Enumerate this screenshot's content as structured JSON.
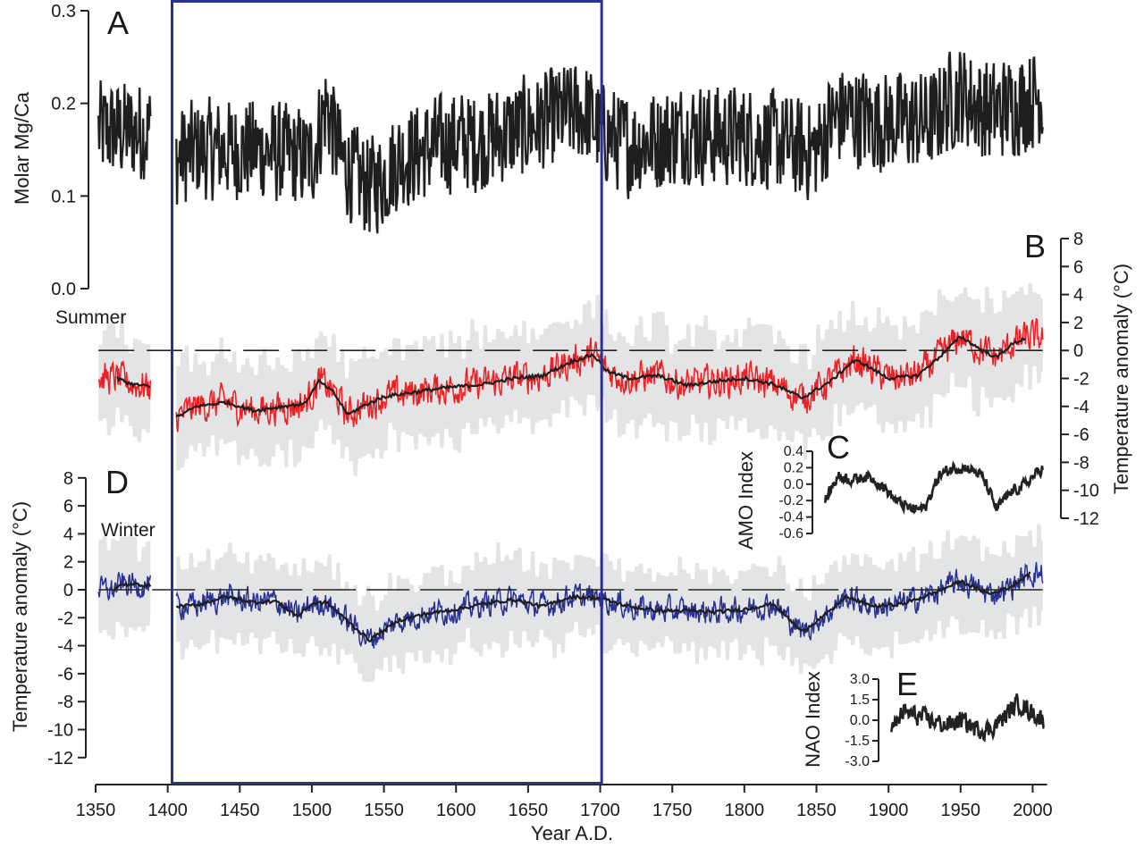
{
  "chart_data": {
    "type": "line",
    "colors": {
      "mgca": "#1e1e1e",
      "summer": "#ee2024",
      "winter": "#2b3192",
      "mean": "#1e1e1e",
      "band": "#e3e4e6",
      "highlight_box": "#2b3192",
      "amo": "#222222",
      "nao": "#222222"
    },
    "x_axis": {
      "label": "Year A.D.",
      "range": [
        1350,
        2010
      ],
      "ticks": [
        "1350",
        "1400",
        "1450",
        "1500",
        "1550",
        "1600",
        "1650",
        "1700",
        "1750",
        "1800",
        "1850",
        "1900",
        "1950",
        "2000"
      ]
    },
    "highlight_box_years": [
      1403,
      1701
    ],
    "panels": [
      {
        "id": "A",
        "letter": "A",
        "ylabel": "Molar Mg/Ca",
        "ylim": [
          0,
          0.3
        ],
        "yticks": [
          "0.0",
          "0.1",
          "0.2",
          "0.3"
        ],
        "noise_amplitude": 0.05,
        "segments": [
          [
            1352,
            1388
          ],
          [
            1406,
            2007
          ]
        ],
        "series_mean": {
          "x": [
            1350,
            1360,
            1370,
            1380,
            1390,
            1406,
            1420,
            1440,
            1460,
            1480,
            1500,
            1510,
            1520,
            1530,
            1540,
            1550,
            1560,
            1580,
            1600,
            1620,
            1640,
            1660,
            1680,
            1690,
            1700,
            1720,
            1740,
            1760,
            1780,
            1800,
            1820,
            1840,
            1850,
            1860,
            1870,
            1890,
            1910,
            1930,
            1940,
            1950,
            1970,
            1990,
            2007
          ],
          "y": [
            0.17,
            0.17,
            0.17,
            0.17,
            0.17,
            0.14,
            0.15,
            0.15,
            0.15,
            0.145,
            0.14,
            0.2,
            0.14,
            0.12,
            0.11,
            0.12,
            0.14,
            0.15,
            0.16,
            0.16,
            0.17,
            0.18,
            0.19,
            0.19,
            0.17,
            0.155,
            0.16,
            0.17,
            0.165,
            0.165,
            0.16,
            0.15,
            0.15,
            0.18,
            0.19,
            0.18,
            0.18,
            0.18,
            0.2,
            0.21,
            0.19,
            0.2,
            0.21
          ]
        }
      },
      {
        "id": "B",
        "letter": "B",
        "season": "Summer",
        "ylabel": "Temperature anomaly (°C)",
        "ylim": [
          -12,
          8
        ],
        "yticks": [
          "8",
          "6",
          "4",
          "2",
          "0",
          "-2",
          "-4",
          "-6",
          "-8",
          "-10",
          "-12"
        ],
        "noise_amplitude": 1.8,
        "segments": [
          [
            1352,
            1388
          ],
          [
            1406,
            2007
          ]
        ],
        "running_mean": {
          "x": [
            1365,
            1375,
            1388,
            1406,
            1420,
            1440,
            1460,
            1480,
            1495,
            1505,
            1515,
            1525,
            1535,
            1550,
            1570,
            1590,
            1620,
            1640,
            1660,
            1680,
            1695,
            1705,
            1720,
            1740,
            1760,
            1780,
            1800,
            1820,
            1840,
            1860,
            1875,
            1880,
            1900,
            1920,
            1935,
            1950,
            1965,
            1975,
            1985,
            1995
          ],
          "y": [
            -2.0,
            -2.4,
            -2.6,
            -4.8,
            -4.0,
            -3.7,
            -4.3,
            -4.0,
            -3.8,
            -2.2,
            -3.0,
            -4.6,
            -4.0,
            -3.3,
            -3.0,
            -2.7,
            -2.4,
            -2.0,
            -1.8,
            -0.8,
            -0.3,
            -1.5,
            -2.0,
            -1.8,
            -2.5,
            -2.2,
            -2.0,
            -2.4,
            -3.4,
            -2.2,
            -0.8,
            -0.8,
            -2.0,
            -1.8,
            -0.5,
            1.0,
            0.0,
            -0.5,
            0.4,
            0.9
          ]
        }
      },
      {
        "id": "C",
        "letter": "C",
        "ylabel": "AMO Index",
        "ylim": [
          -0.6,
          0.4
        ],
        "yticks": [
          "0.4",
          "0.2",
          "0.0",
          "-0.2",
          "-0.4",
          "-0.6"
        ],
        "noise_amplitude": 0.09,
        "series_mean": {
          "x": [
            1856,
            1865,
            1875,
            1885,
            1895,
            1905,
            1915,
            1925,
            1935,
            1945,
            1955,
            1965,
            1975,
            1985,
            1995,
            2007
          ],
          "y": [
            -0.2,
            0.1,
            0.05,
            0.1,
            0.0,
            -0.2,
            -0.3,
            -0.3,
            0.1,
            0.2,
            0.2,
            0.1,
            -0.3,
            -0.1,
            0.0,
            0.2
          ]
        }
      },
      {
        "id": "D",
        "letter": "D",
        "season": "Winter",
        "ylabel": "Temperature anomaly (°C)",
        "ylim": [
          -12,
          8
        ],
        "yticks": [
          "8",
          "6",
          "4",
          "2",
          "0",
          "-2",
          "-4",
          "-6",
          "-8",
          "-10",
          "-12"
        ],
        "noise_amplitude": 1.4,
        "segments": [
          [
            1352,
            1388
          ],
          [
            1406,
            2007
          ]
        ],
        "running_mean": {
          "x": [
            1362,
            1368,
            1388,
            1406,
            1420,
            1440,
            1460,
            1475,
            1490,
            1500,
            1510,
            1520,
            1540,
            1560,
            1580,
            1600,
            1620,
            1640,
            1660,
            1680,
            1700,
            1720,
            1740,
            1760,
            1780,
            1800,
            1820,
            1840,
            1860,
            1870,
            1890,
            1910,
            1930,
            1950,
            1970,
            1985,
            1998
          ],
          "y": [
            0.0,
            0.4,
            0.3,
            -1.2,
            -1.1,
            -0.5,
            -0.9,
            -0.8,
            -1.9,
            -1.0,
            -0.9,
            -1.8,
            -3.6,
            -2.2,
            -1.7,
            -1.4,
            -1.0,
            -0.7,
            -1.2,
            -0.5,
            -0.6,
            -1.2,
            -1.5,
            -1.5,
            -1.6,
            -1.4,
            -1.0,
            -3.0,
            -1.5,
            -0.5,
            -1.2,
            -1.0,
            -0.3,
            0.6,
            -0.3,
            0.2,
            1.2
          ]
        }
      },
      {
        "id": "E",
        "letter": "E",
        "ylabel": "NAO Index",
        "ylim": [
          -3.0,
          3.0
        ],
        "yticks": [
          "3.0",
          "1.5",
          "0.0",
          "-1.5",
          "-3.0"
        ],
        "noise_amplitude": 0.9,
        "series_mean": {
          "x": [
            1902,
            1910,
            1920,
            1930,
            1940,
            1950,
            1960,
            1970,
            1980,
            1990,
            2000,
            2008
          ],
          "y": [
            -0.8,
            0.6,
            0.3,
            0.0,
            -0.4,
            0.0,
            -0.6,
            -0.7,
            0.2,
            1.3,
            0.5,
            0.0
          ]
        }
      }
    ]
  }
}
